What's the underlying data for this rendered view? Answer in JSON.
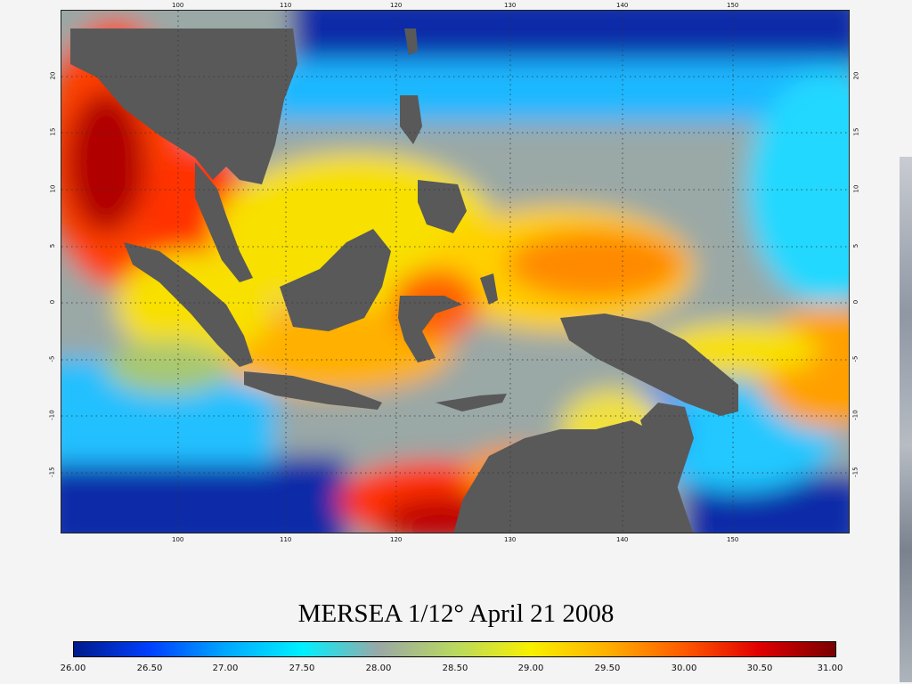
{
  "map": {
    "title": "MERSEA 1/12° April 21 2008",
    "lon_ticks_top": [
      "100",
      "110",
      "120",
      "130",
      "140",
      "150"
    ],
    "lon_ticks_bottom": [
      "100",
      "110",
      "120",
      "130",
      "140",
      "150"
    ],
    "lat_ticks_left": [
      "20",
      "15",
      "10",
      "5",
      "0",
      "-5",
      "-10",
      "-15"
    ],
    "lat_ticks_right": [
      "20",
      "15",
      "10",
      "5",
      "0",
      "-5",
      "-10",
      "-15"
    ],
    "colors": {
      "land": "#595959",
      "grid": "#333333"
    }
  },
  "colorbar": {
    "labels": [
      "26.00",
      "26.50",
      "27.00",
      "27.50",
      "28.00",
      "28.50",
      "29.00",
      "29.50",
      "30.00",
      "30.50",
      "31.00"
    ],
    "stops": [
      "#001a8c",
      "#0040ff",
      "#00a8ff",
      "#00f0ff",
      "#9aa8a6",
      "#b8d860",
      "#f8f000",
      "#ffb000",
      "#ff5a00",
      "#e00000",
      "#7a0000"
    ]
  }
}
